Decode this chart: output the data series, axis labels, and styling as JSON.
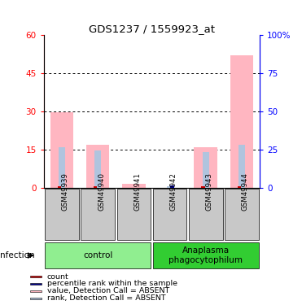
{
  "title": "GDS1237 / 1559923_at",
  "samples": [
    "GSM49939",
    "GSM49940",
    "GSM49941",
    "GSM49942",
    "GSM49943",
    "GSM49944"
  ],
  "pink_bar_heights": [
    29.5,
    17.0,
    1.5,
    0.0,
    16.0,
    52.0
  ],
  "blue_rank_heights": [
    16.0,
    14.5,
    0.0,
    0.5,
    14.0,
    17.0
  ],
  "red_count_values": [
    0.4,
    0.4,
    0.0,
    0.0,
    0.4,
    0.4
  ],
  "blue_count_values": [
    0.0,
    0.0,
    0.0,
    0.9,
    0.0,
    0.0
  ],
  "ylim_left": [
    0,
    60
  ],
  "ylim_right": [
    0,
    100
  ],
  "yticks_left": [
    0,
    15,
    30,
    45,
    60
  ],
  "yticks_right": [
    0,
    25,
    50,
    75,
    100
  ],
  "ytick_labels_left": [
    "0",
    "15",
    "30",
    "45",
    "60"
  ],
  "ytick_labels_right": [
    "0",
    "25",
    "50",
    "75",
    "100%"
  ],
  "group_labels": [
    "control",
    "Anaplasma\nphagocytophilum"
  ],
  "group_colors": [
    "#90EE90",
    "#32CD32"
  ],
  "row_label": "infection",
  "pink_color": "#FFB6C1",
  "blue_rank_color": "#B0C4DE",
  "red_color": "#CC0000",
  "blue_color": "#00008B",
  "legend_items": [
    {
      "label": "count",
      "color": "#CC0000"
    },
    {
      "label": "percentile rank within the sample",
      "color": "#00008B"
    },
    {
      "label": "value, Detection Call = ABSENT",
      "color": "#FFB6C1"
    },
    {
      "label": "rank, Detection Call = ABSENT",
      "color": "#B0C4DE"
    }
  ],
  "bg_color": "#C8C8C8"
}
